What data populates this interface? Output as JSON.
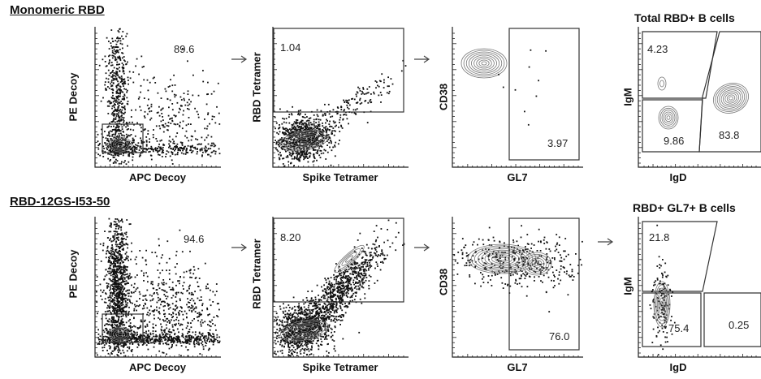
{
  "rows": [
    {
      "title": "Monomeric RBD",
      "panels": [
        {
          "id": "r1p1",
          "kind": "decoy",
          "xlabel": "APC Decoy",
          "ylabel": "PE Decoy",
          "gates": [
            {
              "label": "89.6"
            }
          ]
        },
        {
          "id": "r1p2",
          "kind": "tetramer",
          "xlabel": "Spike Tetramer",
          "ylabel": "RBD Tetramer",
          "gates": [
            {
              "label": "1.04"
            }
          ]
        },
        {
          "id": "r1p3",
          "kind": "gl7",
          "xlabel": "GL7",
          "ylabel": "CD38",
          "gates": [
            {
              "label": "3.97"
            }
          ]
        },
        {
          "id": "r1p4",
          "kind": "igd",
          "title": "Total RBD+ B cells",
          "xlabel": "IgD",
          "ylabel": "IgM",
          "gates": [
            {
              "label": "4.23"
            },
            {
              "label": "9.86"
            },
            {
              "label": "83.8"
            }
          ]
        }
      ]
    },
    {
      "title": "RBD-12GS-I53-50",
      "panels": [
        {
          "id": "r2p1",
          "kind": "decoy",
          "xlabel": "APC Decoy",
          "ylabel": "PE Decoy",
          "gates": [
            {
              "label": "94.6"
            }
          ]
        },
        {
          "id": "r2p2",
          "kind": "tetramer",
          "xlabel": "Spike Tetramer",
          "ylabel": "RBD Tetramer",
          "gates": [
            {
              "label": "8.20"
            }
          ]
        },
        {
          "id": "r2p3",
          "kind": "gl7",
          "xlabel": "GL7",
          "ylabel": "CD38",
          "gates": [
            {
              "label": "76.0"
            }
          ]
        },
        {
          "id": "r2p4",
          "kind": "igd",
          "title": "RBD+ GL7+ B cells",
          "xlabel": "IgD",
          "ylabel": "IgM",
          "gates": [
            {
              "label": "21.8"
            },
            {
              "label": "75.4"
            },
            {
              "label": "0.25"
            }
          ]
        }
      ]
    }
  ],
  "chart_data": {
    "type": "scatter",
    "description_free": true,
    "panels": [
      {
        "row": "Monomeric RBD",
        "x": "APC Decoy",
        "y": "PE Decoy",
        "gate_percent": [
          89.6
        ]
      },
      {
        "row": "Monomeric RBD",
        "x": "Spike Tetramer",
        "y": "RBD Tetramer",
        "gate_percent": [
          1.04
        ]
      },
      {
        "row": "Monomeric RBD",
        "x": "GL7",
        "y": "CD38",
        "gate_percent": [
          3.97
        ]
      },
      {
        "row": "Monomeric RBD",
        "title": "Total RBD+ B cells",
        "x": "IgD",
        "y": "IgM",
        "gate_percent": [
          4.23,
          9.86,
          83.8
        ]
      },
      {
        "row": "RBD-12GS-I53-50",
        "x": "APC Decoy",
        "y": "PE Decoy",
        "gate_percent": [
          94.6
        ]
      },
      {
        "row": "RBD-12GS-I53-50",
        "x": "Spike Tetramer",
        "y": "RBD Tetramer",
        "gate_percent": [
          8.2
        ]
      },
      {
        "row": "RBD-12GS-I53-50",
        "x": "GL7",
        "y": "CD38",
        "gate_percent": [
          76.0
        ]
      },
      {
        "row": "RBD-12GS-I53-50",
        "title": "RBD+ GL7+ B cells",
        "x": "IgD",
        "y": "IgM",
        "gate_percent": [
          21.8,
          75.4,
          0.25
        ]
      }
    ],
    "colors": {
      "points": "#111111",
      "contour": "#777777",
      "gate": "#333333"
    }
  }
}
